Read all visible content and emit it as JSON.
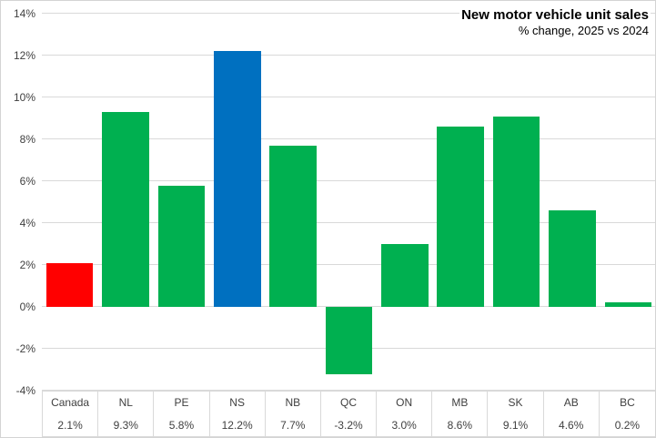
{
  "chart_data": {
    "type": "bar",
    "title": "New motor vehicle unit sales",
    "subtitle": "% change, 2025 vs 2024",
    "categories": [
      "Canada",
      "NL",
      "PE",
      "NS",
      "NB",
      "QC",
      "ON",
      "MB",
      "SK",
      "AB",
      "BC"
    ],
    "values": [
      2.1,
      9.3,
      5.8,
      12.2,
      7.7,
      -3.2,
      3.0,
      8.6,
      9.1,
      4.6,
      0.2
    ],
    "value_labels": [
      "2.1%",
      "9.3%",
      "5.8%",
      "12.2%",
      "7.7%",
      "-3.2%",
      "3.0%",
      "8.6%",
      "9.1%",
      "4.6%",
      "0.2%"
    ],
    "bar_colors": [
      "#FF0000",
      "#00B050",
      "#00B050",
      "#0070C0",
      "#00B050",
      "#00B050",
      "#00B050",
      "#00B050",
      "#00B050",
      "#00B050",
      "#00B050"
    ],
    "ylim": [
      -4,
      14
    ],
    "y_ticks": [
      {
        "value": 14,
        "label": "14%"
      },
      {
        "value": 12,
        "label": "12%"
      },
      {
        "value": 10,
        "label": "10%"
      },
      {
        "value": 8,
        "label": "8%"
      },
      {
        "value": 6,
        "label": "6%"
      },
      {
        "value": 4,
        "label": "4%"
      },
      {
        "value": 2,
        "label": "2%"
      },
      {
        "value": 0,
        "label": "0%"
      },
      {
        "value": -2,
        "label": "-2%"
      },
      {
        "value": -4,
        "label": "-4%"
      }
    ],
    "grid": true,
    "legend_position": "none",
    "colors": {
      "canada_bar": "#FF0000",
      "province_bar": "#00B050",
      "highlight_bar": "#0070C0",
      "gridline": "#D9D9D9",
      "axis_text": "#404040"
    }
  }
}
